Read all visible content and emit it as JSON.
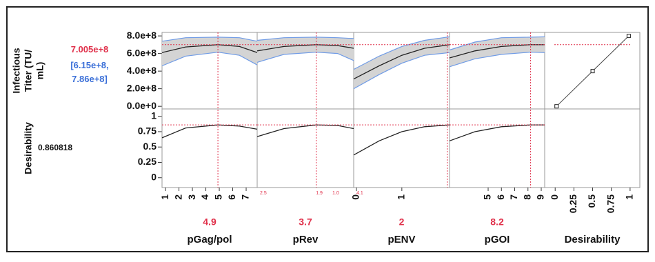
{
  "chart_data": {
    "type": "profiler",
    "responses": [
      {
        "name_lines": [
          "Infectious",
          "Titer (TU/",
          "mL)"
        ],
        "current": {
          "value": 700500000,
          "label": "7.005e+8"
        },
        "ci": [
          {
            "value": 615000000,
            "label": "[6.15e+8,"
          },
          {
            "value": 786000000,
            "label": "7.86e+8]"
          }
        ],
        "ylim": [
          -30000000,
          840000000
        ],
        "yticks": [
          {
            "value": 0,
            "label": "0.0e+0"
          },
          {
            "value": 200000000,
            "label": "2.0e+8"
          },
          {
            "value": 400000000,
            "label": "4.0e+8"
          },
          {
            "value": 600000000,
            "label": "6.0e+8"
          },
          {
            "value": 800000000,
            "label": "8.0e+8"
          }
        ]
      },
      {
        "name_lines": [
          "Desirability"
        ],
        "current": 0.860818,
        "ylim": [
          -0.16,
          1.12
        ],
        "yticks": [
          0,
          0.25,
          0.5,
          0.75,
          1
        ]
      }
    ],
    "factors": [
      {
        "name": "pGag/pol",
        "current": 4.9,
        "xlim": [
          0.74,
          7.82
        ],
        "xticks": [
          1,
          2,
          3,
          4,
          5,
          6,
          7
        ],
        "tick_notes": [],
        "x": [
          0.74,
          2.5,
          4.9,
          6.5,
          7.82
        ],
        "mean": [
          610000000,
          675000000,
          700500000,
          680000000,
          610000000
        ],
        "lower": [
          460000000,
          570000000,
          615000000,
          580000000,
          470000000
        ],
        "upper": [
          740000000,
          780000000,
          786000000,
          780000000,
          740000000
        ],
        "desirability": [
          0.65,
          0.81,
          0.86,
          0.84,
          0.79
        ]
      },
      {
        "name": "pRev",
        "current": 3.7,
        "xlim": [
          1.5,
          5.1
        ],
        "xticks": [],
        "tick_notes": [
          "2.5",
          "1.9",
          "1.0"
        ],
        "x": [
          1.5,
          2.5,
          3.7,
          4.5,
          5.1
        ],
        "mean": [
          630000000,
          680000000,
          700500000,
          690000000,
          660000000
        ],
        "lower": [
          500000000,
          590000000,
          615000000,
          600000000,
          520000000
        ],
        "upper": [
          750000000,
          780000000,
          786000000,
          780000000,
          770000000
        ],
        "desirability": [
          0.67,
          0.8,
          0.86,
          0.85,
          0.8
        ]
      },
      {
        "name": "pENV",
        "current": 2,
        "xlim": [
          -0.06,
          2.05
        ],
        "xticks": [
          0,
          1
        ],
        "tick_notes": [
          "4.1"
        ],
        "x": [
          -0.06,
          0.5,
          1,
          1.5,
          2.05
        ],
        "mean": [
          310000000,
          460000000,
          580000000,
          660000000,
          700000000
        ],
        "lower": [
          200000000,
          360000000,
          490000000,
          580000000,
          610000000
        ],
        "upper": [
          420000000,
          570000000,
          680000000,
          750000000,
          790000000
        ],
        "desirability": [
          0.37,
          0.6,
          0.75,
          0.83,
          0.86
        ]
      },
      {
        "name": "pGOI",
        "current": 8.2,
        "xlim": [
          2.09,
          9.26
        ],
        "xticks": [
          5,
          6,
          7,
          8,
          9
        ],
        "tick_notes": [],
        "x": [
          2.09,
          4,
          6,
          8.2,
          9.26
        ],
        "mean": [
          550000000,
          630000000,
          680000000,
          700500000,
          700000000
        ],
        "lower": [
          450000000,
          540000000,
          590000000,
          615000000,
          610000000
        ],
        "upper": [
          640000000,
          730000000,
          780000000,
          786000000,
          790000000
        ],
        "desirability": [
          0.6,
          0.75,
          0.83,
          0.86,
          0.86
        ]
      }
    ],
    "desirability_panel": {
      "name": "Desirability",
      "xlim": [
        -0.14,
        1.13
      ],
      "xticks": [
        0,
        0.25,
        0.5,
        0.75,
        1
      ],
      "x": [
        0.0183,
        0.5,
        0.9817
      ],
      "y": [
        0,
        400000000,
        800000000
      ]
    },
    "colors": {
      "mean": "#222222",
      "band": "#d4d4d4",
      "band_edge": "#6f9be6",
      "current": "#e0304a",
      "ci": "#3a6fd8",
      "panel": "#9a9a9a"
    }
  }
}
